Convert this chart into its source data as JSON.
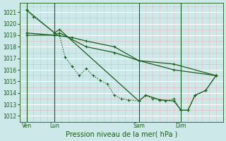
{
  "background_color": "#cce8e8",
  "grid_color_major": "#ffffff",
  "grid_color_minor": "#e8b8b8",
  "line_color": "#1a5c1a",
  "title": "Pression niveau de la mer( hPa )",
  "title_fontsize": 7,
  "ylim": [
    1011.5,
    1021.8
  ],
  "yticks": [
    1012,
    1013,
    1014,
    1015,
    1016,
    1017,
    1018,
    1019,
    1020,
    1021
  ],
  "xlim": [
    0,
    29
  ],
  "xtick_positions": [
    1,
    5,
    17,
    23
  ],
  "xtick_labels": [
    "Ven",
    "Lun",
    "Sam",
    "Dim"
  ],
  "vline_positions": [
    1,
    5,
    17,
    23
  ],
  "series": [
    {
      "x": [
        1,
        2,
        5,
        5.7,
        6.5,
        7.5,
        8.5,
        9.5,
        10.5,
        11.5,
        12.5,
        13.5,
        14.5,
        15.5,
        17,
        18,
        19,
        20,
        20.8,
        22,
        23,
        24,
        25,
        26.5,
        28
      ],
      "y": [
        1021.2,
        1020.6,
        1019.2,
        1019.0,
        1017.1,
        1016.3,
        1015.5,
        1016.1,
        1015.5,
        1015.1,
        1014.8,
        1013.8,
        1013.5,
        1013.4,
        1013.3,
        1013.8,
        1013.5,
        1013.4,
        1013.3,
        1013.5,
        1012.5,
        1012.5,
        1013.8,
        1014.2,
        1015.5
      ],
      "ls": ":",
      "lw": 0.9,
      "marker": "+"
    },
    {
      "x": [
        1,
        5,
        5.7,
        17,
        18,
        20,
        22,
        23,
        24,
        25,
        26.5,
        28
      ],
      "y": [
        1021.2,
        1019.2,
        1019.5,
        1013.3,
        1013.8,
        1013.4,
        1013.3,
        1012.5,
        1012.5,
        1013.8,
        1014.2,
        1015.5
      ],
      "ls": "-",
      "lw": 0.9,
      "marker": "+"
    },
    {
      "x": [
        1,
        5,
        5.7,
        9.5,
        13.5,
        17,
        22,
        28
      ],
      "y": [
        1019.2,
        1019.0,
        1019.2,
        1018.0,
        1017.5,
        1016.8,
        1016.0,
        1015.5
      ],
      "ls": "-",
      "lw": 0.9,
      "marker": "+"
    },
    {
      "x": [
        1,
        5,
        7.5,
        9.5,
        13.5,
        17,
        22,
        28
      ],
      "y": [
        1019.0,
        1019.0,
        1018.8,
        1018.5,
        1018.0,
        1016.8,
        1016.5,
        1015.5
      ],
      "ls": "-",
      "lw": 0.9,
      "marker": "+"
    }
  ],
  "num_minor_x": 28,
  "tick_fontsize": 5.5
}
